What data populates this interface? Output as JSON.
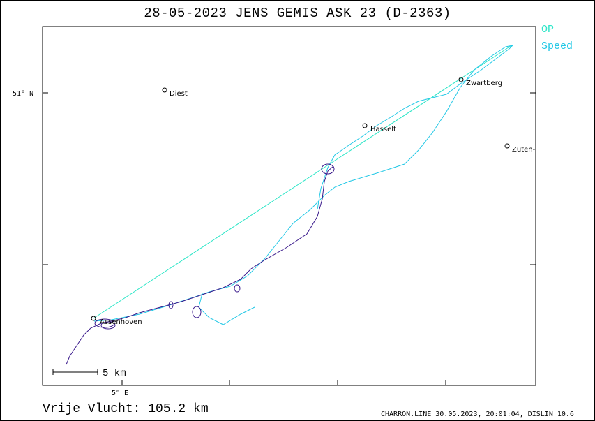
{
  "title": "28-05-2023   JENS GEMIS    ASK 23 (D-2363)",
  "legend": {
    "items": [
      {
        "label": "OP",
        "color": "#2ee6c8"
      },
      {
        "label": "Speed",
        "color": "#22c8e6"
      }
    ]
  },
  "map": {
    "lat_label": "51° N",
    "lon_label": "5° E",
    "scale_label": "5  km",
    "places": [
      {
        "name": "Diest",
        "icon": "circle-marker"
      },
      {
        "name": "Hasselt",
        "icon": "circle-marker"
      },
      {
        "name": "Zwartberg",
        "icon": "circle-marker"
      },
      {
        "name": "Zuten-",
        "icon": "circle-marker"
      },
      {
        "name": "Assenhoven",
        "icon": "circle-marker"
      }
    ],
    "colors": {
      "op_line": "#2ee6c8",
      "speed_track": "#22c8e6",
      "slow_track": "#3a1a8c"
    }
  },
  "footer": {
    "distance_label": "Vrije Vlucht:  105.2 km",
    "credit": "CHARRON.LINE 30.05.2023, 20:01:04, DISLIN 10.6"
  }
}
